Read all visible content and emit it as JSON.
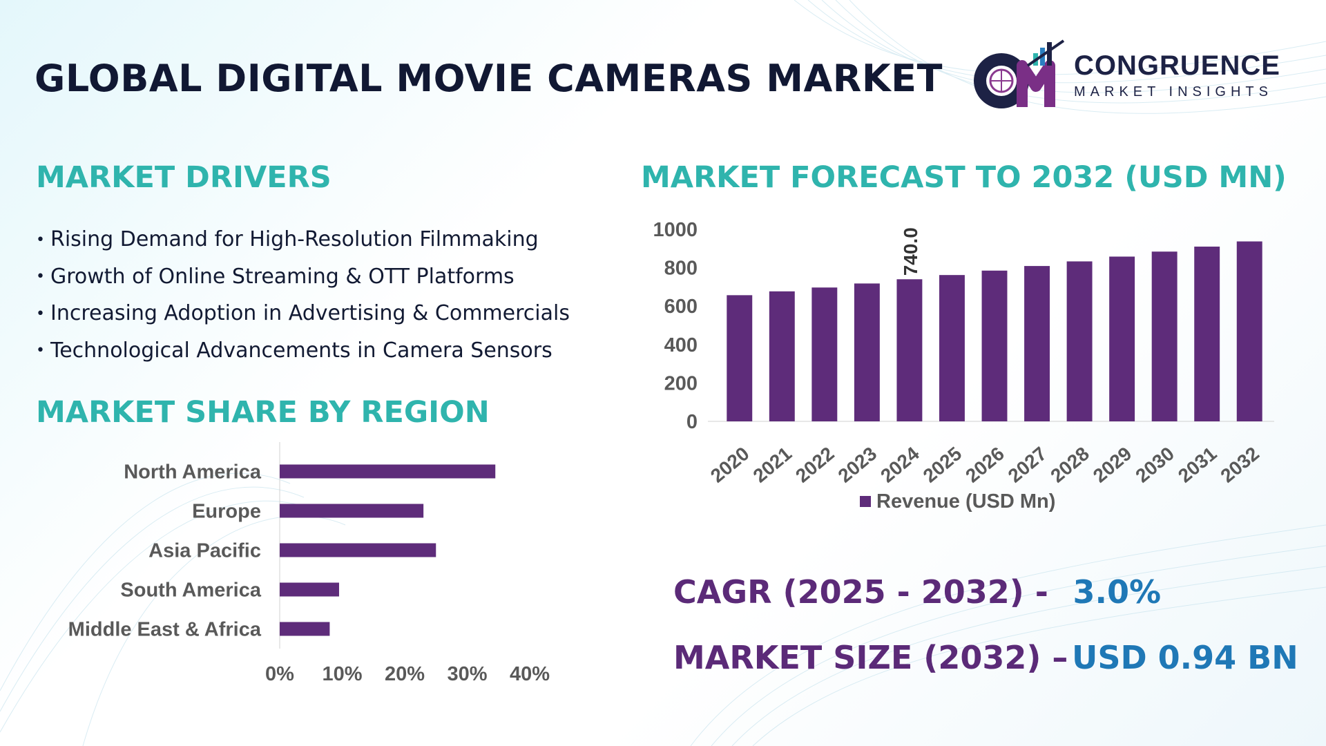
{
  "title": "GLOBAL DIGITAL MOVIE CAMERAS MARKET",
  "logo": {
    "mark": "CM",
    "name": "CONGRUENCE",
    "tagline": "MARKET INSIGHTS"
  },
  "drivers": {
    "heading": "MARKET DRIVERS",
    "items": [
      "Rising Demand for High-Resolution Filmmaking",
      "Growth of Online Streaming & OTT Platforms",
      "Increasing Adoption in Advertising & Commercials",
      "Technological Advancements in Camera Sensors"
    ]
  },
  "region_heading": "MARKET SHARE BY REGION",
  "forecast_heading": "MARKET FORECAST TO 2032 (USD MN)",
  "kpis": {
    "cagr_label": "CAGR (2025 - 2032) -",
    "cagr_value": "3.0%",
    "size_label": "MARKET SIZE (2032) –",
    "size_value": "USD 0.94 BN"
  },
  "colors": {
    "bar": "#5e2c7a",
    "heading": "#2fb4ad",
    "title": "#111833",
    "kpi_value": "#1f78b6"
  },
  "chart_data": [
    {
      "type": "bar",
      "orientation": "horizontal",
      "categories": [
        "North America",
        "Europe",
        "Asia Pacific",
        "South America",
        "Middle East & Africa"
      ],
      "values": [
        34.5,
        23,
        25,
        9.5,
        8
      ],
      "xlim": [
        0,
        40
      ],
      "xticks": [
        "0%",
        "10%",
        "20%",
        "30%",
        "40%"
      ]
    },
    {
      "type": "bar",
      "categories": [
        "2020",
        "2021",
        "2022",
        "2023",
        "2024",
        "2025",
        "2026",
        "2027",
        "2028",
        "2029",
        "2030",
        "2031",
        "2032"
      ],
      "series": [
        {
          "name": "Revenue (USD Mn)",
          "values": [
            657,
            677,
            697,
            718,
            740,
            762,
            785,
            809,
            833,
            858,
            884,
            910,
            937
          ]
        }
      ],
      "data_labels": [
        {
          "category": "2024",
          "text": "740.0"
        }
      ],
      "ylim": [
        0,
        1000
      ],
      "yticks": [
        "0",
        "200",
        "400",
        "600",
        "800",
        "1000"
      ],
      "legend": "bottom"
    }
  ]
}
